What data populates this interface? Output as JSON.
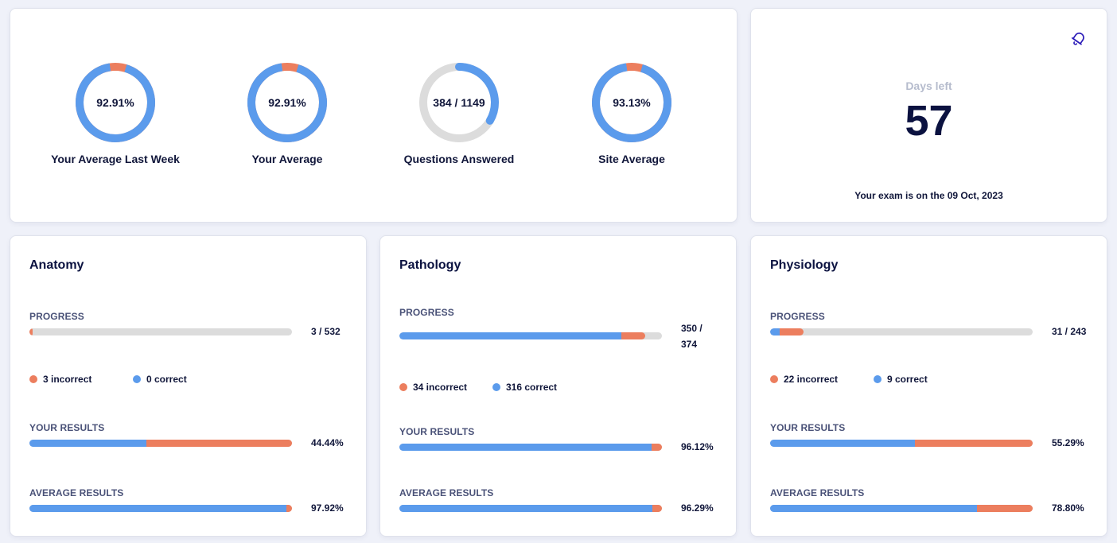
{
  "colors": {
    "correct": "#5b9bec",
    "incorrect": "#ec7e5e",
    "track": "#dcdcdc",
    "accent": "#2b1bb8"
  },
  "stats": [
    {
      "label": "Your Average Last Week",
      "display": "92.91%",
      "fraction": 0.9291,
      "ring": "split"
    },
    {
      "label": "Your Average",
      "display": "92.91%",
      "fraction": 0.9291,
      "ring": "split"
    },
    {
      "label": "Questions Answered",
      "display": "384 / 1149",
      "fraction": 0.3342,
      "ring": "progress"
    },
    {
      "label": "Site Average",
      "display": "93.13%",
      "fraction": 0.9313,
      "ring": "split"
    }
  ],
  "countdown": {
    "label": "Days left",
    "days": "57",
    "exam_text": "Your exam is on the 09 Oct, 2023",
    "icon": "bell-icon"
  },
  "subjects": [
    {
      "title": "Anatomy",
      "progress_label": "PROGRESS",
      "progress_text": "3 / 532",
      "progress_correct": 0,
      "progress_incorrect": 3,
      "progress_total": 532,
      "incorrect_text": "3 incorrect",
      "correct_text": "0 correct",
      "results_label": "YOUR RESULTS",
      "results_text": "44.44%",
      "results_value": 44.44,
      "average_label": "AVERAGE RESULTS",
      "average_text": "97.92%",
      "average_value": 97.92
    },
    {
      "title": "Pathology",
      "progress_label": "PROGRESS",
      "progress_text": "350 / 374",
      "progress_correct": 316,
      "progress_incorrect": 34,
      "progress_total": 374,
      "incorrect_text": "34 incorrect",
      "correct_text": "316 correct",
      "results_label": "YOUR RESULTS",
      "results_text": "96.12%",
      "results_value": 96.12,
      "average_label": "AVERAGE RESULTS",
      "average_text": "96.29%",
      "average_value": 96.29
    },
    {
      "title": "Physiology",
      "progress_label": "PROGRESS",
      "progress_text": "31 / 243",
      "progress_correct": 9,
      "progress_incorrect": 22,
      "progress_total": 243,
      "incorrect_text": "22 incorrect",
      "correct_text": "9 correct",
      "results_label": "YOUR RESULTS",
      "results_text": "55.29%",
      "results_value": 55.29,
      "average_label": "AVERAGE RESULTS",
      "average_text": "78.80%",
      "average_value": 78.8
    }
  ]
}
